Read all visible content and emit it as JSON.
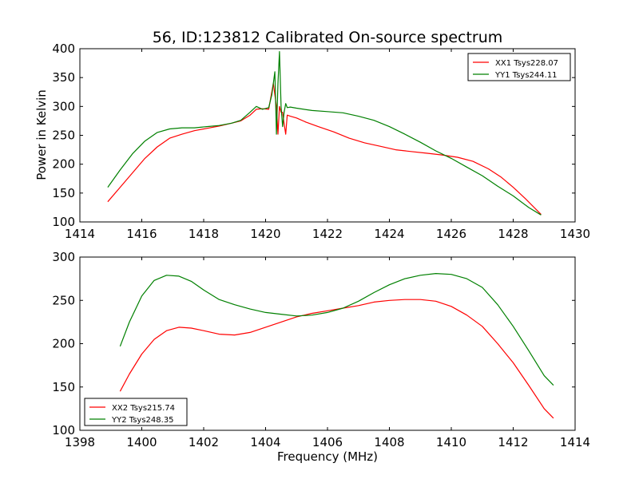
{
  "figure": {
    "title": "56, ID:123812 Calibrated On-source spectrum",
    "ylabel": "Power in Kelvin",
    "xlabel": "Frequency (MHz)"
  },
  "colors": {
    "red": "#ff0000",
    "green": "#008000",
    "axis": "#000000"
  },
  "chart_data": [
    {
      "type": "line",
      "panel": "top",
      "title": "56, ID:123812 Calibrated On-source spectrum",
      "xlabel": "",
      "ylabel": "Power in Kelvin",
      "xlim": [
        1414,
        1430
      ],
      "ylim": [
        100,
        400
      ],
      "xticks": [
        1414,
        1416,
        1418,
        1420,
        1422,
        1424,
        1426,
        1428,
        1430
      ],
      "yticks": [
        100,
        150,
        200,
        250,
        300,
        350,
        400
      ],
      "grid": false,
      "legend_position": "top-right",
      "series": [
        {
          "name": "XX1 Tsys228.07",
          "color": "#ff0000",
          "x": [
            1414.9,
            1415.3,
            1415.7,
            1416.1,
            1416.5,
            1416.9,
            1417.3,
            1417.7,
            1418.1,
            1418.5,
            1418.9,
            1419.2,
            1419.5,
            1419.7,
            1419.9,
            1420.1,
            1420.25,
            1420.35,
            1420.4,
            1420.45,
            1420.5,
            1420.55,
            1420.6,
            1420.65,
            1420.7,
            1420.8,
            1421.0,
            1421.3,
            1421.7,
            1422.2,
            1422.7,
            1423.2,
            1423.7,
            1424.2,
            1424.7,
            1425.2,
            1425.7,
            1426.2,
            1426.7,
            1427.2,
            1427.6,
            1428.0,
            1428.4,
            1428.9
          ],
          "y": [
            135,
            160,
            185,
            210,
            230,
            245,
            252,
            258,
            262,
            266,
            271,
            275,
            285,
            295,
            296,
            295,
            340,
            300,
            252,
            300,
            290,
            290,
            270,
            252,
            285,
            283,
            280,
            273,
            265,
            256,
            245,
            237,
            231,
            225,
            222,
            219,
            216,
            212,
            205,
            192,
            178,
            160,
            140,
            113
          ]
        },
        {
          "name": "YY1 Tsys244.11",
          "color": "#008000",
          "x": [
            1414.9,
            1415.3,
            1415.7,
            1416.1,
            1416.5,
            1416.9,
            1417.3,
            1417.7,
            1418.1,
            1418.5,
            1418.9,
            1419.2,
            1419.5,
            1419.7,
            1419.9,
            1420.1,
            1420.2,
            1420.3,
            1420.35,
            1420.4,
            1420.45,
            1420.5,
            1420.55,
            1420.6,
            1420.65,
            1420.7,
            1420.8,
            1421.0,
            1421.5,
            1422.0,
            1422.5,
            1423.0,
            1423.5,
            1424.0,
            1424.5,
            1425.0,
            1425.5,
            1426.0,
            1426.5,
            1427.0,
            1427.5,
            1428.0,
            1428.5,
            1428.9
          ],
          "y": [
            160,
            190,
            218,
            240,
            255,
            261,
            263,
            263,
            265,
            267,
            271,
            276,
            290,
            300,
            295,
            298,
            320,
            360,
            252,
            340,
            395,
            300,
            265,
            290,
            305,
            298,
            299,
            297,
            293,
            291,
            289,
            283,
            276,
            265,
            252,
            238,
            223,
            210,
            195,
            180,
            162,
            145,
            125,
            112
          ]
        }
      ]
    },
    {
      "type": "line",
      "panel": "bottom",
      "title": "",
      "xlabel": "Frequency (MHz)",
      "ylabel": "",
      "xlim": [
        1398,
        1414
      ],
      "ylim": [
        100,
        300
      ],
      "xticks": [
        1398,
        1400,
        1402,
        1404,
        1406,
        1408,
        1410,
        1412,
        1414
      ],
      "yticks": [
        100,
        150,
        200,
        250,
        300
      ],
      "grid": false,
      "legend_position": "bottom-left",
      "series": [
        {
          "name": "XX2 Tsys215.74",
          "color": "#ff0000",
          "x": [
            1399.3,
            1399.6,
            1400.0,
            1400.4,
            1400.8,
            1401.2,
            1401.6,
            1402.0,
            1402.5,
            1403.0,
            1403.5,
            1404.0,
            1404.5,
            1405.0,
            1405.5,
            1406.0,
            1406.5,
            1407.0,
            1407.5,
            1408.0,
            1408.5,
            1409.0,
            1409.5,
            1410.0,
            1410.5,
            1411.0,
            1411.5,
            1412.0,
            1412.5,
            1413.0,
            1413.3
          ],
          "y": [
            145,
            165,
            188,
            205,
            215,
            219,
            218,
            215,
            211,
            210,
            213,
            219,
            225,
            231,
            235,
            238,
            241,
            244,
            248,
            250,
            251,
            251,
            249,
            243,
            233,
            220,
            200,
            178,
            152,
            125,
            114
          ]
        },
        {
          "name": "YY2 Tsys248.35",
          "color": "#008000",
          "x": [
            1399.3,
            1399.6,
            1400.0,
            1400.4,
            1400.8,
            1401.2,
            1401.6,
            1402.0,
            1402.5,
            1403.0,
            1403.5,
            1404.0,
            1404.5,
            1405.0,
            1405.5,
            1406.0,
            1406.5,
            1407.0,
            1407.5,
            1408.0,
            1408.5,
            1409.0,
            1409.5,
            1410.0,
            1410.5,
            1411.0,
            1411.5,
            1412.0,
            1412.5,
            1413.0,
            1413.3
          ],
          "y": [
            197,
            225,
            255,
            273,
            279,
            278,
            272,
            262,
            251,
            245,
            240,
            236,
            234,
            232,
            233,
            236,
            241,
            249,
            259,
            268,
            275,
            279,
            281,
            280,
            275,
            265,
            245,
            220,
            192,
            163,
            152
          ]
        }
      ]
    }
  ]
}
